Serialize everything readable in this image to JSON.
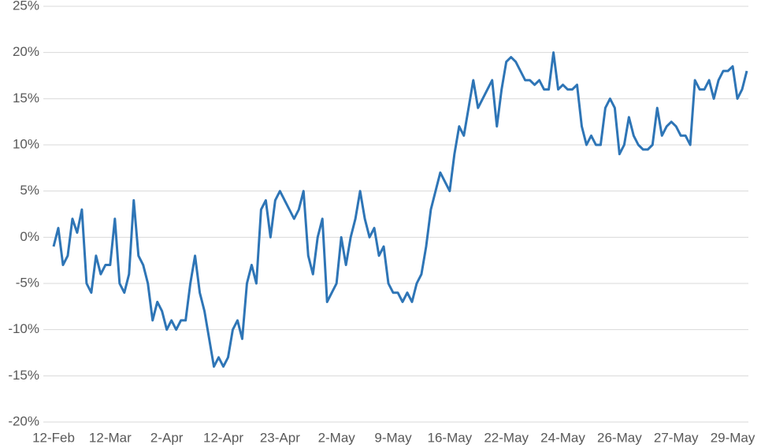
{
  "chart_data": {
    "type": "line",
    "categories": [
      "12-Feb",
      null,
      null,
      null,
      null,
      null,
      null,
      null,
      null,
      null,
      null,
      null,
      "12-Mar",
      null,
      null,
      null,
      null,
      null,
      null,
      null,
      null,
      null,
      null,
      null,
      "2-Apr",
      null,
      null,
      null,
      null,
      null,
      null,
      null,
      null,
      null,
      null,
      null,
      "12-Apr",
      null,
      null,
      null,
      null,
      null,
      null,
      null,
      null,
      null,
      null,
      null,
      "23-Apr",
      null,
      null,
      null,
      null,
      null,
      null,
      null,
      null,
      null,
      null,
      null,
      "2-May",
      null,
      null,
      null,
      null,
      null,
      null,
      null,
      null,
      null,
      null,
      null,
      "9-May",
      null,
      null,
      null,
      null,
      null,
      null,
      null,
      null,
      null,
      null,
      null,
      "16-May",
      null,
      null,
      null,
      null,
      null,
      null,
      null,
      null,
      null,
      null,
      null,
      "22-May",
      null,
      null,
      null,
      null,
      null,
      null,
      null,
      null,
      null,
      null,
      null,
      "24-May",
      null,
      null,
      null,
      null,
      null,
      null,
      null,
      null,
      null,
      null,
      null,
      "26-May",
      null,
      null,
      null,
      null,
      null,
      null,
      null,
      null,
      null,
      null,
      null,
      "27-May",
      null,
      null,
      null,
      null,
      null,
      null,
      null,
      null,
      null,
      null,
      null,
      "29-May",
      null,
      null,
      null
    ],
    "values": [
      -1,
      1,
      -3,
      -2,
      2,
      0.5,
      3,
      -5,
      -6,
      -2,
      -4,
      -3,
      -3,
      2,
      -5,
      -6,
      -4,
      4,
      -2,
      -3,
      -5,
      -9,
      -7,
      -8,
      -10,
      -9,
      -10,
      -9,
      -9,
      -5,
      -2,
      -6,
      -8,
      -11,
      -14,
      -13,
      -14,
      -13,
      -10,
      -9,
      -11,
      -5,
      -3,
      -5,
      3,
      4,
      0,
      4,
      5,
      4,
      3,
      2,
      3,
      5,
      -2,
      -4,
      0,
      2,
      -7,
      -6,
      -5,
      0,
      -3,
      0,
      2,
      5,
      2,
      0,
      1,
      -2,
      -1,
      -5,
      -6,
      -6,
      -7,
      -6,
      -7,
      -5,
      -4,
      -1,
      3,
      5,
      7,
      6,
      5,
      9,
      12,
      11,
      14,
      17,
      14,
      15,
      16,
      17,
      12,
      16,
      19,
      19.5,
      19,
      18,
      17,
      17,
      16.5,
      17,
      16,
      16,
      20,
      16,
      16.5,
      16,
      16,
      16.5,
      12,
      10,
      11,
      10,
      10,
      14,
      15,
      14,
      9,
      10,
      13,
      11,
      10,
      9.5,
      9.5,
      10,
      14,
      11,
      12,
      12.5,
      12,
      11,
      11,
      10,
      17,
      16,
      16,
      17,
      15,
      17,
      18,
      18,
      18.5,
      15,
      16,
      18
    ],
    "color": "#2e75b6",
    "ylim": [
      -20,
      25
    ],
    "yticks": [
      {
        "value": -20,
        "label": "-20%"
      },
      {
        "value": -15,
        "label": "-15%"
      },
      {
        "value": -10,
        "label": "-10%"
      },
      {
        "value": -5,
        "label": "-5%"
      },
      {
        "value": 0,
        "label": "0%"
      },
      {
        "value": 5,
        "label": "5%"
      },
      {
        "value": 10,
        "label": "10%"
      },
      {
        "value": 15,
        "label": "15%"
      },
      {
        "value": 20,
        "label": "20%"
      },
      {
        "value": 25,
        "label": "25%"
      }
    ],
    "grid": true
  }
}
